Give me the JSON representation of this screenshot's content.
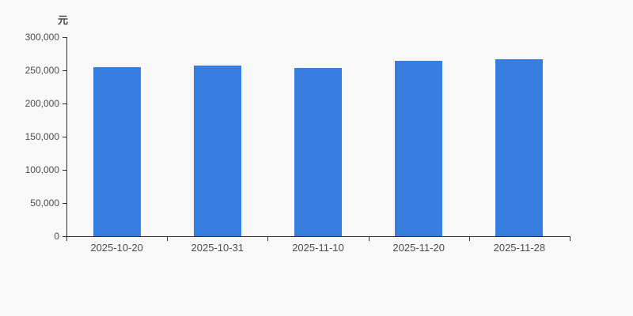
{
  "page": {
    "background_color": "#f8f8f8"
  },
  "chart_data": {
    "type": "bar",
    "title": "",
    "ylabel": "元",
    "xlabel": "",
    "categories": [
      "2025-10-20",
      "2025-10-31",
      "2025-11-10",
      "2025-11-20",
      "2025-11-28"
    ],
    "values": [
      254800,
      257600,
      253600,
      263900,
      267000
    ],
    "ylim": [
      0,
      300000
    ],
    "ytick_step": 50000,
    "ytick_labels": [
      "0",
      "50,000",
      "100,000",
      "150,000",
      "200,000",
      "250,000",
      "300,000"
    ],
    "grid": false,
    "legend_position": "none",
    "bar_color": "#377EE0",
    "axis_color": "#333333",
    "label_color": "#4d4d4d"
  }
}
